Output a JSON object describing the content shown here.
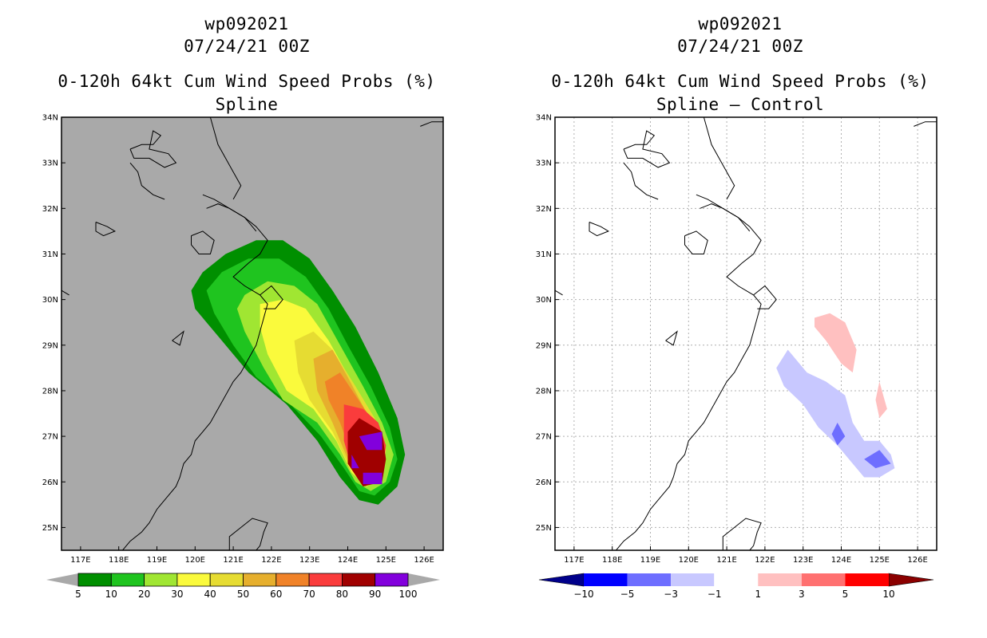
{
  "chart_data": [
    {
      "type": "heatmap",
      "storm_id": "wp092021",
      "datetime": "07/24/21 00Z",
      "title": "0-120h 64kt Cum Wind Speed Probs (%)",
      "subtitle": "Spline",
      "xlim": [
        116.5,
        126.5
      ],
      "ylim": [
        24.5,
        34
      ],
      "x_ticks": [
        "117E",
        "118E",
        "119E",
        "120E",
        "121E",
        "122E",
        "123E",
        "124E",
        "125E",
        "126E"
      ],
      "y_ticks": [
        "25N",
        "26N",
        "27N",
        "28N",
        "29N",
        "30N",
        "31N",
        "32N",
        "33N",
        "34N"
      ],
      "grid": false,
      "background_color": "#a9a9a9",
      "colorbar": {
        "labels": [
          "5",
          "10",
          "20",
          "30",
          "40",
          "50",
          "60",
          "70",
          "80",
          "90",
          "100"
        ],
        "colors": [
          "#008f00",
          "#1fc41f",
          "#a0e632",
          "#fafa3c",
          "#e6dc32",
          "#e6af2d",
          "#f08228",
          "#fa3c3c",
          "#a00000",
          "#8200dc"
        ]
      },
      "contours": [
        {
          "level": 5,
          "color": "#008f00",
          "polygon": [
            [
              119.9,
              30.2
            ],
            [
              120.2,
              30.6
            ],
            [
              120.8,
              31.0
            ],
            [
              121.6,
              31.3
            ],
            [
              122.3,
              31.3
            ],
            [
              123.0,
              30.9
            ],
            [
              123.6,
              30.2
            ],
            [
              124.2,
              29.4
            ],
            [
              124.8,
              28.4
            ],
            [
              125.3,
              27.4
            ],
            [
              125.5,
              26.6
            ],
            [
              125.3,
              25.9
            ],
            [
              124.8,
              25.5
            ],
            [
              124.3,
              25.6
            ],
            [
              123.8,
              26.1
            ],
            [
              123.2,
              26.9
            ],
            [
              122.4,
              27.7
            ],
            [
              121.4,
              28.4
            ],
            [
              120.6,
              29.2
            ],
            [
              120.0,
              29.8
            ]
          ]
        },
        {
          "level": 10,
          "color": "#1fc41f",
          "polygon": [
            [
              120.3,
              30.2
            ],
            [
              120.7,
              30.6
            ],
            [
              121.4,
              30.9
            ],
            [
              122.2,
              30.9
            ],
            [
              122.9,
              30.5
            ],
            [
              123.5,
              29.8
            ],
            [
              124.0,
              29.0
            ],
            [
              124.6,
              28.1
            ],
            [
              125.1,
              27.2
            ],
            [
              125.3,
              26.5
            ],
            [
              125.1,
              26.0
            ],
            [
              124.7,
              25.7
            ],
            [
              124.3,
              25.8
            ],
            [
              123.9,
              26.3
            ],
            [
              123.3,
              27.0
            ],
            [
              122.5,
              27.7
            ],
            [
              121.6,
              28.3
            ],
            [
              121.0,
              29.0
            ],
            [
              120.5,
              29.7
            ]
          ]
        },
        {
          "level": 20,
          "color": "#a0e632",
          "polygon": [
            [
              121.3,
              30.1
            ],
            [
              121.9,
              30.4
            ],
            [
              122.6,
              30.3
            ],
            [
              123.2,
              29.9
            ],
            [
              123.8,
              29.0
            ],
            [
              124.4,
              28.1
            ],
            [
              124.9,
              27.3
            ],
            [
              125.2,
              26.6
            ],
            [
              125.0,
              26.0
            ],
            [
              124.6,
              25.8
            ],
            [
              124.2,
              26.0
            ],
            [
              123.8,
              26.6
            ],
            [
              123.2,
              27.3
            ],
            [
              122.3,
              27.8
            ],
            [
              121.8,
              28.5
            ],
            [
              121.3,
              29.3
            ],
            [
              121.1,
              29.8
            ]
          ]
        },
        {
          "level": 30,
          "color": "#fafa3c",
          "polygon": [
            [
              121.7,
              29.9
            ],
            [
              122.3,
              30.0
            ],
            [
              122.9,
              29.8
            ],
            [
              123.5,
              29.1
            ],
            [
              124.1,
              28.2
            ],
            [
              124.7,
              27.4
            ],
            [
              125.0,
              26.7
            ],
            [
              124.9,
              26.1
            ],
            [
              124.5,
              25.9
            ],
            [
              124.1,
              26.2
            ],
            [
              123.7,
              26.9
            ],
            [
              123.1,
              27.6
            ],
            [
              122.4,
              28.0
            ],
            [
              121.9,
              28.8
            ],
            [
              121.7,
              29.4
            ]
          ]
        },
        {
          "level": 40,
          "color": "#e6dc32",
          "polygon": [
            [
              122.6,
              29.1
            ],
            [
              123.1,
              29.3
            ],
            [
              123.6,
              28.9
            ],
            [
              124.2,
              28.1
            ],
            [
              124.7,
              27.4
            ],
            [
              125.0,
              26.7
            ],
            [
              124.8,
              26.1
            ],
            [
              124.4,
              26.0
            ],
            [
              124.0,
              26.4
            ],
            [
              123.6,
              27.1
            ],
            [
              123.0,
              27.8
            ],
            [
              122.7,
              28.4
            ]
          ]
        },
        {
          "level": 50,
          "color": "#e6af2d",
          "polygon": [
            [
              123.1,
              28.7
            ],
            [
              123.6,
              28.9
            ],
            [
              124.0,
              28.3
            ],
            [
              124.5,
              27.5
            ],
            [
              124.9,
              26.8
            ],
            [
              124.8,
              26.1
            ],
            [
              124.4,
              26.1
            ],
            [
              124.0,
              26.5
            ],
            [
              123.6,
              27.3
            ],
            [
              123.2,
              28.0
            ]
          ]
        },
        {
          "level": 60,
          "color": "#f08228",
          "polygon": [
            [
              123.4,
              28.2
            ],
            [
              123.8,
              28.4
            ],
            [
              124.2,
              27.9
            ],
            [
              124.6,
              27.4
            ],
            [
              124.9,
              26.8
            ],
            [
              124.8,
              26.2
            ],
            [
              124.4,
              26.1
            ],
            [
              124.1,
              26.6
            ],
            [
              123.8,
              27.3
            ],
            [
              123.5,
              27.8
            ]
          ]
        },
        {
          "level": 70,
          "color": "#fa3c3c",
          "polygon": [
            [
              123.9,
              27.7
            ],
            [
              124.4,
              27.6
            ],
            [
              124.8,
              27.3
            ],
            [
              125.0,
              26.8
            ],
            [
              124.9,
              26.1
            ],
            [
              124.5,
              26.0
            ],
            [
              124.1,
              26.3
            ],
            [
              123.9,
              26.9
            ]
          ]
        },
        {
          "level": 80,
          "color": "#a00000",
          "polygon": [
            [
              124.0,
              27.1
            ],
            [
              124.3,
              27.4
            ],
            [
              124.9,
              27.1
            ],
            [
              125.0,
              26.5
            ],
            [
              124.9,
              26.0
            ],
            [
              124.4,
              25.9
            ],
            [
              124.0,
              26.4
            ]
          ]
        },
        {
          "level": 90,
          "color": "#8200dc",
          "polygon": [
            [
              124.3,
              27.0
            ],
            [
              124.9,
              27.1
            ],
            [
              124.9,
              26.7
            ],
            [
              124.5,
              26.7
            ]
          ]
        },
        {
          "level": 90,
          "color": "#8200dc",
          "polygon": [
            [
              124.1,
              26.6
            ],
            [
              124.3,
              26.3
            ],
            [
              124.1,
              26.3
            ]
          ]
        },
        {
          "level": 90,
          "color": "#8200dc",
          "polygon": [
            [
              124.4,
              26.2
            ],
            [
              124.9,
              26.2
            ],
            [
              124.9,
              25.95
            ],
            [
              124.4,
              25.95
            ]
          ]
        }
      ]
    },
    {
      "type": "heatmap",
      "storm_id": "wp092021",
      "datetime": "07/24/21 00Z",
      "title": "0-120h 64kt Cum Wind Speed Probs (%)",
      "subtitle": "Spline – Control",
      "xlim": [
        116.5,
        126.5
      ],
      "ylim": [
        24.5,
        34
      ],
      "x_ticks": [
        "117E",
        "118E",
        "119E",
        "120E",
        "121E",
        "122E",
        "123E",
        "124E",
        "125E",
        "126E"
      ],
      "y_ticks": [
        "25N",
        "26N",
        "27N",
        "28N",
        "29N",
        "30N",
        "31N",
        "32N",
        "33N",
        "34N"
      ],
      "grid": true,
      "background_color": "#ffffff",
      "colorbar": {
        "labels": [
          "−10",
          "−5",
          "−3",
          "−1",
          "1",
          "3",
          "5",
          "10"
        ],
        "colors": [
          "#00008b",
          "#0000ff",
          "#6e6eff",
          "#c8c8ff",
          "#ffffff",
          "#ffc0c0",
          "#ff7070",
          "#ff0000",
          "#8b0000"
        ]
      },
      "contours": [
        {
          "level": -1,
          "color": "#c8c8ff",
          "polygon": [
            [
              122.3,
              28.5
            ],
            [
              122.6,
              28.9
            ],
            [
              123.1,
              28.4
            ],
            [
              123.6,
              28.2
            ],
            [
              124.1,
              27.9
            ],
            [
              124.3,
              27.3
            ],
            [
              124.6,
              26.9
            ],
            [
              125.0,
              26.9
            ],
            [
              125.3,
              26.6
            ],
            [
              125.4,
              26.3
            ],
            [
              125.0,
              26.1
            ],
            [
              124.6,
              26.1
            ],
            [
              124.3,
              26.4
            ],
            [
              123.9,
              26.8
            ],
            [
              123.4,
              27.2
            ],
            [
              123.0,
              27.7
            ],
            [
              122.5,
              28.1
            ]
          ]
        },
        {
          "level": -3,
          "color": "#6e6eff",
          "polygon": [
            [
              123.9,
              27.3
            ],
            [
              124.1,
              27.0
            ],
            [
              123.9,
              26.8
            ],
            [
              123.75,
              27.05
            ]
          ]
        },
        {
          "level": -3,
          "color": "#6e6eff",
          "polygon": [
            [
              124.6,
              26.5
            ],
            [
              125.0,
              26.7
            ],
            [
              125.3,
              26.4
            ],
            [
              124.9,
              26.3
            ]
          ]
        },
        {
          "level": 1,
          "color": "#ffc0c0",
          "polygon": [
            [
              123.3,
              29.6
            ],
            [
              123.7,
              29.7
            ],
            [
              124.1,
              29.5
            ],
            [
              124.4,
              28.9
            ],
            [
              124.3,
              28.4
            ],
            [
              124.0,
              28.6
            ],
            [
              123.6,
              29.1
            ],
            [
              123.3,
              29.4
            ]
          ]
        },
        {
          "level": 1,
          "color": "#ffc0c0",
          "polygon": [
            [
              125.0,
              28.2
            ],
            [
              125.1,
              27.9
            ],
            [
              125.2,
              27.6
            ],
            [
              125.0,
              27.4
            ],
            [
              124.9,
              27.8
            ]
          ]
        }
      ]
    }
  ]
}
